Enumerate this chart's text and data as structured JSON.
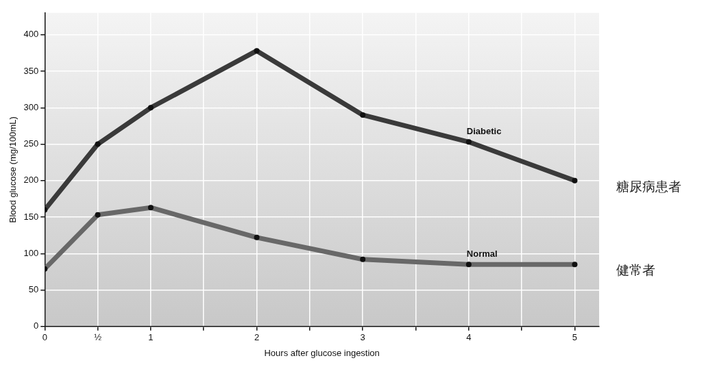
{
  "chart_data": {
    "type": "line",
    "xlabel": "Hours after glucose ingestion",
    "ylabel": "Blood glucose (mg/100mL)",
    "xlim": [
      0,
      5.23
    ],
    "xticks": [
      0,
      {
        "value": 0.5,
        "label": "½"
      },
      1,
      {
        "value": 1.5,
        "label": null
      },
      2,
      {
        "value": 2.5,
        "label": null
      },
      3,
      {
        "value": 3.5,
        "label": null
      },
      4,
      {
        "value": 4.5,
        "label": null
      },
      5
    ],
    "ylim": [
      0,
      430
    ],
    "yticks": [
      0,
      50,
      100,
      150,
      200,
      250,
      300,
      350,
      400
    ],
    "x": [
      0,
      0.5,
      1,
      2,
      3,
      4,
      5
    ],
    "series": [
      {
        "name": "Diabetic",
        "color": "#3a3a3a",
        "values": [
          160,
          250,
          300,
          378,
          290,
          253,
          200
        ]
      },
      {
        "name": "Normal",
        "color": "#686868",
        "values": [
          79,
          153,
          163,
          122,
          92,
          85,
          85
        ]
      }
    ],
    "annotations": [
      "糖尿病患者",
      "健常者"
    ],
    "grid": true,
    "marker": "circle",
    "line_style": "solid",
    "legend": false
  }
}
